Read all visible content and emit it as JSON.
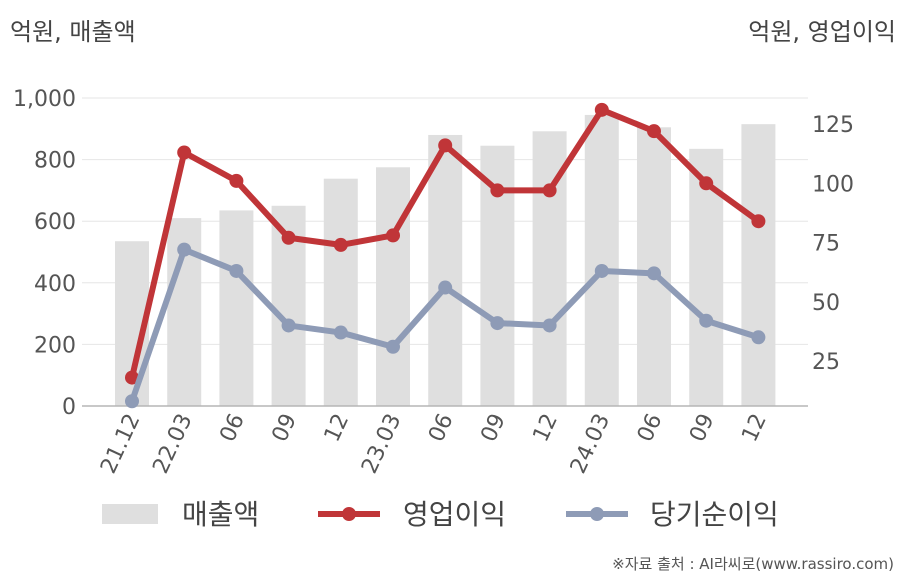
{
  "header": {
    "left_unit": "억원, 매출액",
    "right_unit": "억원, 영업이익"
  },
  "source": "※자료 출처 : AI라씨로(www.rassiro.com)",
  "colors": {
    "bar": "#dfdfdf",
    "operating_profit": "#c03538",
    "net_income": "#8e9bb6",
    "grid": "#e6e6e6",
    "axis": "#b5b5b5"
  },
  "chart_data": {
    "type": "bar",
    "categories": [
      "21.12",
      "22.03",
      "06",
      "09",
      "12",
      "23.03",
      "06",
      "09",
      "12",
      "24.03",
      "06",
      "09",
      "12"
    ],
    "series": [
      {
        "name": "매출액",
        "type": "bar",
        "axis": "left",
        "values": [
          535,
          610,
          635,
          650,
          738,
          775,
          880,
          845,
          892,
          945,
          905,
          835,
          915
        ]
      },
      {
        "name": "영업이익",
        "type": "line",
        "axis": "right",
        "values": [
          18,
          113,
          101,
          77,
          74,
          78,
          116,
          97,
          97,
          131,
          122,
          100,
          84
        ]
      },
      {
        "name": "당기순이익",
        "type": "line",
        "axis": "right",
        "values": [
          8,
          72,
          63,
          40,
          37,
          31,
          56,
          41,
          40,
          63,
          62,
          42,
          35
        ]
      }
    ],
    "left_axis": {
      "ylim": [
        0,
        1000
      ],
      "ticks": [
        0,
        200,
        400,
        600,
        800,
        1000
      ],
      "tick_labels": [
        "0",
        "200",
        "400",
        "600",
        "800",
        "1,000"
      ]
    },
    "right_axis": {
      "ylim": [
        6,
        136
      ],
      "ticks": [
        25,
        50,
        75,
        100,
        125
      ],
      "tick_labels": [
        "25",
        "50",
        "75",
        "100",
        "125"
      ]
    },
    "grid": true,
    "legend_position": "bottom"
  }
}
